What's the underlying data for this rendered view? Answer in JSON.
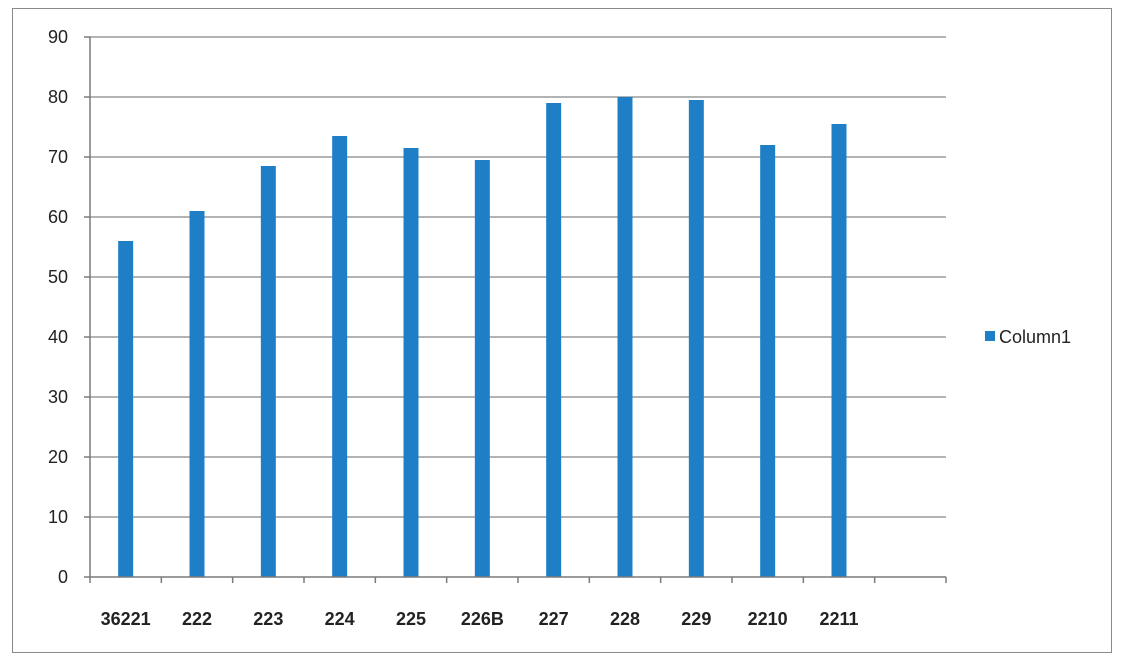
{
  "chart_data": {
    "type": "bar",
    "categories": [
      "36221",
      "222",
      "223",
      "224",
      "225",
      "226B",
      "227",
      "228",
      "229",
      "2210",
      "2211",
      ""
    ],
    "series": [
      {
        "name": "Column1",
        "values": [
          56,
          61,
          68.5,
          73.5,
          71.5,
          69.5,
          79,
          80,
          79.5,
          72,
          75.5,
          null
        ]
      }
    ],
    "ylim": [
      0,
      90
    ],
    "yticks": [
      0,
      10,
      20,
      30,
      40,
      50,
      60,
      70,
      80,
      90
    ],
    "grid": true,
    "legend_position": "right",
    "colors": {
      "bar": "#1f7fc6",
      "grid": "#9a9a9a",
      "axis": "#7a7a7a"
    }
  }
}
